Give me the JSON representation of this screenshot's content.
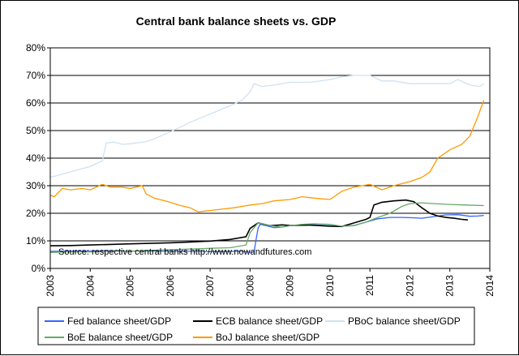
{
  "chart_data": {
    "type": "line",
    "title": "Central bank balance sheets vs. GDP",
    "annotation": "Source: respective central banks   http://www.nowandfutures.com",
    "xlim": [
      2003,
      2014
    ],
    "ylim": [
      0,
      80
    ],
    "x_ticks": [
      "2003",
      "2004",
      "2005",
      "2006",
      "2007",
      "2008",
      "2009",
      "2010",
      "2011",
      "2012",
      "2013",
      "2014"
    ],
    "y_ticks": [
      "0%",
      "10%",
      "20%",
      "30%",
      "40%",
      "50%",
      "60%",
      "70%",
      "80%"
    ],
    "grid": "horizontal",
    "legend_position": "bottom",
    "colors": {
      "plot_bg": "#ffffff",
      "grid": "#000000"
    },
    "series": [
      {
        "name": "Fed balance sheet/GDP",
        "color": "#3366ff",
        "points": [
          [
            2003.0,
            6.2
          ],
          [
            2003.5,
            6.3
          ],
          [
            2004.0,
            6.3
          ],
          [
            2004.5,
            6.4
          ],
          [
            2005.0,
            6.3
          ],
          [
            2005.5,
            6.3
          ],
          [
            2006.0,
            6.2
          ],
          [
            2006.5,
            6.2
          ],
          [
            2007.0,
            6.1
          ],
          [
            2007.4,
            6.1
          ],
          [
            2007.7,
            6.3
          ],
          [
            2007.9,
            6.0
          ],
          [
            2008.0,
            5.9
          ],
          [
            2008.1,
            6.0
          ],
          [
            2008.15,
            10.5
          ],
          [
            2008.2,
            14.5
          ],
          [
            2008.25,
            16.0
          ],
          [
            2008.4,
            15.5
          ],
          [
            2008.6,
            14.8
          ],
          [
            2008.8,
            15.0
          ],
          [
            2009.0,
            15.5
          ],
          [
            2009.3,
            15.8
          ],
          [
            2009.6,
            15.8
          ],
          [
            2010.0,
            15.5
          ],
          [
            2010.3,
            15.3
          ],
          [
            2010.6,
            15.6
          ],
          [
            2010.9,
            16.8
          ],
          [
            2011.2,
            18.0
          ],
          [
            2011.5,
            18.5
          ],
          [
            2011.8,
            18.5
          ],
          [
            2012.0,
            18.4
          ],
          [
            2012.3,
            18.2
          ],
          [
            2012.6,
            18.8
          ],
          [
            2012.9,
            19.4
          ],
          [
            2013.2,
            19.5
          ],
          [
            2013.5,
            18.9
          ],
          [
            2013.7,
            19.0
          ],
          [
            2013.85,
            19.2
          ]
        ]
      },
      {
        "name": "ECB balance sheet/GDP",
        "color": "#000000",
        "points": [
          [
            2003.0,
            8.2
          ],
          [
            2003.5,
            8.3
          ],
          [
            2004.0,
            8.5
          ],
          [
            2004.5,
            8.7
          ],
          [
            2005.0,
            8.9
          ],
          [
            2005.5,
            9.1
          ],
          [
            2006.0,
            9.3
          ],
          [
            2006.5,
            9.6
          ],
          [
            2007.0,
            9.9
          ],
          [
            2007.5,
            10.5
          ],
          [
            2007.9,
            11.5
          ],
          [
            2008.0,
            14.5
          ],
          [
            2008.2,
            16.5
          ],
          [
            2008.5,
            15.5
          ],
          [
            2008.8,
            15.8
          ],
          [
            2009.0,
            15.6
          ],
          [
            2009.5,
            15.7
          ],
          [
            2010.0,
            15.3
          ],
          [
            2010.3,
            15.2
          ],
          [
            2010.6,
            16.5
          ],
          [
            2010.9,
            17.8
          ],
          [
            2011.0,
            18.5
          ],
          [
            2011.1,
            23.0
          ],
          [
            2011.3,
            24.0
          ],
          [
            2011.6,
            24.5
          ],
          [
            2011.9,
            24.8
          ],
          [
            2012.1,
            24.2
          ],
          [
            2012.3,
            22.0
          ],
          [
            2012.5,
            20.0
          ],
          [
            2012.7,
            19.0
          ],
          [
            2012.9,
            18.5
          ],
          [
            2013.1,
            18.2
          ],
          [
            2013.3,
            17.8
          ],
          [
            2013.45,
            17.6
          ]
        ]
      },
      {
        "name": "PBoC balance sheet/GDP",
        "color": "#d0e2f0",
        "points": [
          [
            2003.0,
            33.0
          ],
          [
            2003.5,
            35.0
          ],
          [
            2004.0,
            37.0
          ],
          [
            2004.3,
            39.0
          ],
          [
            2004.4,
            45.5
          ],
          [
            2004.6,
            45.8
          ],
          [
            2004.8,
            45.0
          ],
          [
            2005.0,
            45.2
          ],
          [
            2005.4,
            46.0
          ],
          [
            2005.6,
            47.0
          ],
          [
            2006.0,
            49.5
          ],
          [
            2006.5,
            53.0
          ],
          [
            2007.0,
            56.0
          ],
          [
            2007.5,
            59.0
          ],
          [
            2007.8,
            61.0
          ],
          [
            2008.0,
            64.0
          ],
          [
            2008.1,
            67.0
          ],
          [
            2008.3,
            66.0
          ],
          [
            2008.6,
            66.5
          ],
          [
            2009.0,
            67.5
          ],
          [
            2009.5,
            67.5
          ],
          [
            2010.0,
            68.5
          ],
          [
            2010.3,
            69.5
          ],
          [
            2010.6,
            70.0
          ],
          [
            2011.0,
            70.0
          ],
          [
            2011.3,
            68.0
          ],
          [
            2011.6,
            68.0
          ],
          [
            2012.0,
            67.0
          ],
          [
            2012.3,
            67.0
          ],
          [
            2012.6,
            67.0
          ],
          [
            2013.0,
            67.0
          ],
          [
            2013.2,
            68.5
          ],
          [
            2013.5,
            66.5
          ],
          [
            2013.75,
            66.0
          ],
          [
            2013.85,
            67.0
          ]
        ]
      },
      {
        "name": "BoE balance sheet/GDP",
        "color": "#66aa66",
        "points": [
          [
            2003.0,
            5.8
          ],
          [
            2003.5,
            6.0
          ],
          [
            2004.0,
            6.0
          ],
          [
            2004.5,
            6.2
          ],
          [
            2005.0,
            6.3
          ],
          [
            2005.5,
            6.5
          ],
          [
            2006.0,
            6.8
          ],
          [
            2006.5,
            7.0
          ],
          [
            2007.0,
            7.3
          ],
          [
            2007.5,
            7.5
          ],
          [
            2007.9,
            8.5
          ],
          [
            2008.0,
            13.0
          ],
          [
            2008.2,
            16.5
          ],
          [
            2008.5,
            15.5
          ],
          [
            2008.8,
            15.0
          ],
          [
            2009.0,
            15.5
          ],
          [
            2009.3,
            16.0
          ],
          [
            2009.6,
            16.2
          ],
          [
            2010.0,
            16.0
          ],
          [
            2010.3,
            15.3
          ],
          [
            2010.6,
            15.5
          ],
          [
            2010.9,
            16.8
          ],
          [
            2011.2,
            18.5
          ],
          [
            2011.5,
            20.0
          ],
          [
            2011.8,
            22.5
          ],
          [
            2012.0,
            23.5
          ],
          [
            2012.3,
            23.8
          ],
          [
            2012.6,
            23.5
          ],
          [
            2013.0,
            23.2
          ],
          [
            2013.4,
            23.0
          ],
          [
            2013.85,
            22.8
          ]
        ]
      },
      {
        "name": "BoJ balance sheet/GDP",
        "color": "#ff9900",
        "points": [
          [
            2003.0,
            26.5
          ],
          [
            2003.1,
            26.0
          ],
          [
            2003.3,
            29.0
          ],
          [
            2003.5,
            28.5
          ],
          [
            2003.8,
            29.0
          ],
          [
            2004.0,
            28.5
          ],
          [
            2004.3,
            30.5
          ],
          [
            2004.5,
            29.5
          ],
          [
            2004.8,
            29.5
          ],
          [
            2005.0,
            29.0
          ],
          [
            2005.3,
            30.0
          ],
          [
            2005.4,
            27.0
          ],
          [
            2005.6,
            25.5
          ],
          [
            2006.0,
            24.0
          ],
          [
            2006.2,
            23.0
          ],
          [
            2006.5,
            22.0
          ],
          [
            2006.7,
            20.5
          ],
          [
            2007.0,
            21.0
          ],
          [
            2007.3,
            21.5
          ],
          [
            2007.6,
            22.0
          ],
          [
            2008.0,
            23.0
          ],
          [
            2008.3,
            23.5
          ],
          [
            2008.6,
            24.5
          ],
          [
            2009.0,
            25.0
          ],
          [
            2009.3,
            26.0
          ],
          [
            2009.6,
            25.5
          ],
          [
            2010.0,
            25.0
          ],
          [
            2010.3,
            28.0
          ],
          [
            2010.6,
            29.5
          ],
          [
            2011.0,
            30.5
          ],
          [
            2011.3,
            28.5
          ],
          [
            2011.6,
            30.0
          ],
          [
            2012.0,
            31.5
          ],
          [
            2012.3,
            33.0
          ],
          [
            2012.5,
            35.0
          ],
          [
            2012.7,
            40.0
          ],
          [
            2013.0,
            43.0
          ],
          [
            2013.3,
            45.0
          ],
          [
            2013.5,
            48.0
          ],
          [
            2013.7,
            55.0
          ],
          [
            2013.85,
            61.0
          ]
        ]
      }
    ]
  }
}
